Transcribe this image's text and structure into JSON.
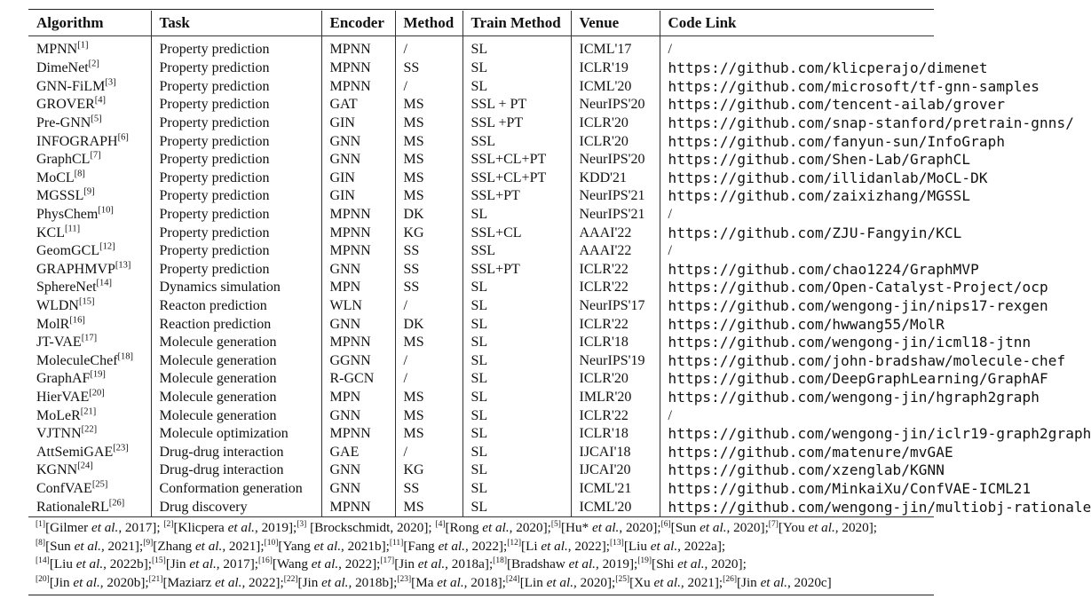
{
  "table": {
    "headers": [
      "Algorithm",
      "Task",
      "Encoder",
      "Method",
      "Train Method",
      "Venue",
      "Code Link"
    ],
    "rows": [
      {
        "algorithm": "MPNN",
        "ref": "[1]",
        "task": "Property prediction",
        "encoder": "MPNN",
        "method": "/",
        "train": "SL",
        "venue": "ICML'17",
        "code": "/"
      },
      {
        "algorithm": "DimeNet",
        "ref": "[2]",
        "task": "Property prediction",
        "encoder": "MPNN",
        "method": "SS",
        "train": "SL",
        "venue": "ICLR'19",
        "code": "https://github.com/klicperajo/dimenet"
      },
      {
        "algorithm": "GNN-FiLM",
        "ref": "[3]",
        "task": "Property prediction",
        "encoder": "MPNN",
        "method": "/",
        "train": "SL",
        "venue": "ICML'20",
        "code": "https://github.com/microsoft/tf-gnn-samples"
      },
      {
        "algorithm": "GROVER",
        "ref": "[4]",
        "task": "Property prediction",
        "encoder": "GAT",
        "method": "MS",
        "train": "SSL + PT",
        "venue": "NeurIPS'20",
        "code": "https://github.com/tencent-ailab/grover"
      },
      {
        "algorithm": "Pre-GNN",
        "ref": "[5]",
        "task": "Property prediction",
        "encoder": "GIN",
        "method": "MS",
        "train": "SSL +PT",
        "venue": "ICLR'20",
        "code": "https://github.com/snap-stanford/pretrain-gnns/"
      },
      {
        "algorithm": "INFOGRAPH",
        "ref": "[6]",
        "task": "Property prediction",
        "encoder": "GNN",
        "method": "MS",
        "train": "SSL",
        "venue": "ICLR'20",
        "code": "https://github.com/fanyun-sun/InfoGraph"
      },
      {
        "algorithm": "GraphCL",
        "ref": "[7]",
        "task": "Property prediction",
        "encoder": "GNN",
        "method": "MS",
        "train": "SSL+CL+PT",
        "venue": "NeurIPS'20",
        "code": "https://github.com/Shen-Lab/GraphCL"
      },
      {
        "algorithm": "MoCL",
        "ref": "[8]",
        "task": "Property prediction",
        "encoder": "GIN",
        "method": "MS",
        "train": "SSL+CL+PT",
        "venue": "KDD'21",
        "code": "https://github.com/illidanlab/MoCL-DK"
      },
      {
        "algorithm": "MGSSL",
        "ref": "[9]",
        "task": "Property prediction",
        "encoder": "GIN",
        "method": "MS",
        "train": "SSL+PT",
        "venue": "NeurIPS'21",
        "code": "https://github.com/zaixizhang/MGSSL"
      },
      {
        "algorithm": "PhysChem",
        "ref": "[10]",
        "task": "Property prediction",
        "encoder": "MPNN",
        "method": "DK",
        "train": "SL",
        "venue": "NeurIPS'21",
        "code": "/"
      },
      {
        "algorithm": "KCL",
        "ref": "[11]",
        "task": "Property prediction",
        "encoder": "MPNN",
        "method": "KG",
        "train": "SSL+CL",
        "venue": "AAAI'22",
        "code": "https://github.com/ZJU-Fangyin/KCL"
      },
      {
        "algorithm": "GeomGCL",
        "ref": "[12]",
        "task": "Property prediction",
        "encoder": "MPNN",
        "method": "SS",
        "train": "SSL",
        "venue": "AAAI'22",
        "code": "/"
      },
      {
        "algorithm": "GRAPHMVP",
        "ref": "[13]",
        "task": "Property prediction",
        "encoder": "GNN",
        "method": "SS",
        "train": "SSL+PT",
        "venue": "ICLR'22",
        "code": "https://github.com/chao1224/GraphMVP"
      },
      {
        "algorithm": "SphereNet",
        "ref": "[14]",
        "task": "Dynamics simulation",
        "encoder": "MPN",
        "method": "SS",
        "train": "SL",
        "venue": "ICLR'22",
        "code": "https://github.com/Open-Catalyst-Project/ocp"
      },
      {
        "algorithm": "WLDN",
        "ref": "[15]",
        "task": "Reacton prediction",
        "encoder": "WLN",
        "method": "/",
        "train": "SL",
        "venue": "NeurIPS'17",
        "code": "https://github.com/wengong-jin/nips17-rexgen"
      },
      {
        "algorithm": "MolR",
        "ref": "[16]",
        "task": "Reaction prediction",
        "encoder": "GNN",
        "method": "DK",
        "train": "SL",
        "venue": "ICLR'22",
        "code": "https://github.com/hwwang55/MolR"
      },
      {
        "algorithm": "JT-VAE",
        "ref": "[17]",
        "task": "Molecule generation",
        "encoder": "MPNN",
        "method": "MS",
        "train": "SL",
        "venue": "ICLR'18",
        "code": "https://github.com/wengong-jin/icml18-jtnn"
      },
      {
        "algorithm": "MoleculeChef",
        "ref": "[18]",
        "task": "Molecule generation",
        "encoder": "GGNN",
        "method": "/",
        "train": "SL",
        "venue": "NeurIPS'19",
        "code": "https://github.com/john-bradshaw/molecule-chef"
      },
      {
        "algorithm": "GraphAF",
        "ref": "[19]",
        "task": "Molecule generation",
        "encoder": "R-GCN",
        "method": "/",
        "train": "SL",
        "venue": "ICLR'20",
        "code": "https://github.com/DeepGraphLearning/GraphAF"
      },
      {
        "algorithm": "HierVAE",
        "ref": "[20]",
        "task": "Molecule generation",
        "encoder": "MPN",
        "method": "MS",
        "train": "SL",
        "venue": "IMLR'20",
        "code": "https://github.com/wengong-jin/hgraph2graph"
      },
      {
        "algorithm": "MoLeR",
        "ref": "[21]",
        "task": "Molecule generation",
        "encoder": "GNN",
        "method": "MS",
        "train": "SL",
        "venue": "ICLR'22",
        "code": "/"
      },
      {
        "algorithm": "VJTNN",
        "ref": "[22]",
        "task": "Molecule optimization",
        "encoder": "MPNN",
        "method": "MS",
        "train": "SL",
        "venue": "ICLR'18",
        "code": "https://github.com/wengong-jin/iclr19-graph2graph"
      },
      {
        "algorithm": "AttSemiGAE",
        "ref": "[23]",
        "task": "Drug-drug interaction",
        "encoder": "GAE",
        "method": "/",
        "train": "SL",
        "venue": "IJCAI'18",
        "code": "https://github.com/matenure/mvGAE"
      },
      {
        "algorithm": "KGNN",
        "ref": "[24]",
        "task": "Drug-drug interaction",
        "encoder": "GNN",
        "method": "KG",
        "train": "SL",
        "venue": "IJCAI'20",
        "code": "https://github.com/xzenglab/KGNN"
      },
      {
        "algorithm": "ConfVAE",
        "ref": "[25]",
        "task": "Conformation generation",
        "encoder": "GNN",
        "method": "SS",
        "train": "SL",
        "venue": "ICML'21",
        "code": "https://github.com/MinkaiXu/ConfVAE-ICML21"
      },
      {
        "algorithm": "RationaleRL",
        "ref": "[26]",
        "task": "Drug discovery",
        "encoder": "MPNN",
        "method": "MS",
        "train": "SL",
        "venue": "ICML'20",
        "code": "https://github.com/wengong-jin/multiobj-rationale"
      }
    ]
  },
  "footnotes": [
    [
      {
        "ref": "[1]",
        "pre": "[Gilmer ",
        "etal": "et al.",
        "post": ", 2017]; "
      },
      {
        "ref": "[2]",
        "pre": "[Klicpera ",
        "etal": "et al.",
        "post": ", 2019];"
      },
      {
        "ref": "[3]",
        "pre": " [Brockschmidt, 2020]; ",
        "etal": "",
        "post": ""
      },
      {
        "ref": "[4]",
        "pre": "[Rong ",
        "etal": "et al.",
        "post": ", 2020];"
      },
      {
        "ref": "[5]",
        "pre": "[Hu* ",
        "etal": "et al.",
        "post": ", 2020];"
      },
      {
        "ref": "[6]",
        "pre": "[Sun ",
        "etal": "et al.",
        "post": ", 2020];"
      },
      {
        "ref": "[7]",
        "pre": "[You ",
        "etal": "et al.",
        "post": ", 2020];"
      }
    ],
    [
      {
        "ref": "[8]",
        "pre": "[Sun ",
        "etal": "et al.",
        "post": ", 2021];"
      },
      {
        "ref": "[9]",
        "pre": "[Zhang ",
        "etal": "et al.",
        "post": ", 2021];"
      },
      {
        "ref": "[10]",
        "pre": "[Yang ",
        "etal": "et al.",
        "post": ", 2021b];"
      },
      {
        "ref": "[11]",
        "pre": "[Fang ",
        "etal": "et al.",
        "post": ", 2022];"
      },
      {
        "ref": "[12]",
        "pre": "[Li ",
        "etal": "et al.",
        "post": ", 2022];"
      },
      {
        "ref": "[13]",
        "pre": "[Liu ",
        "etal": "et al.",
        "post": ", 2022a];"
      }
    ],
    [
      {
        "ref": "[14]",
        "pre": "[Liu ",
        "etal": "et al.",
        "post": ", 2022b];"
      },
      {
        "ref": "[15]",
        "pre": "[Jin ",
        "etal": "et al.",
        "post": ", 2017];"
      },
      {
        "ref": "[16]",
        "pre": "[Wang ",
        "etal": "et al.",
        "post": ", 2022];"
      },
      {
        "ref": "[17]",
        "pre": "[Jin ",
        "etal": "et al.",
        "post": ", 2018a];"
      },
      {
        "ref": "[18]",
        "pre": "[Bradshaw ",
        "etal": "et al.",
        "post": ", 2019];"
      },
      {
        "ref": "[19]",
        "pre": "[Shi ",
        "etal": "et al.",
        "post": ", 2020];"
      }
    ],
    [
      {
        "ref": "[20]",
        "pre": "[Jin ",
        "etal": "et al.",
        "post": ", 2020b];"
      },
      {
        "ref": "[21]",
        "pre": "[Maziarz ",
        "etal": "et al.",
        "post": ", 2022];"
      },
      {
        "ref": "[22]",
        "pre": "[Jin ",
        "etal": "et al.",
        "post": ", 2018b];"
      },
      {
        "ref": "[23]",
        "pre": "[Ma ",
        "etal": "et al.",
        "post": ", 2018];"
      },
      {
        "ref": "[24]",
        "pre": "[Lin ",
        "etal": "et al.",
        "post": ", 2020];"
      },
      {
        "ref": "[25]",
        "pre": "[Xu ",
        "etal": "et al.",
        "post": ", 2021];"
      },
      {
        "ref": "[26]",
        "pre": "[Jin ",
        "etal": "et al.",
        "post": ", 2020c]"
      }
    ]
  ]
}
